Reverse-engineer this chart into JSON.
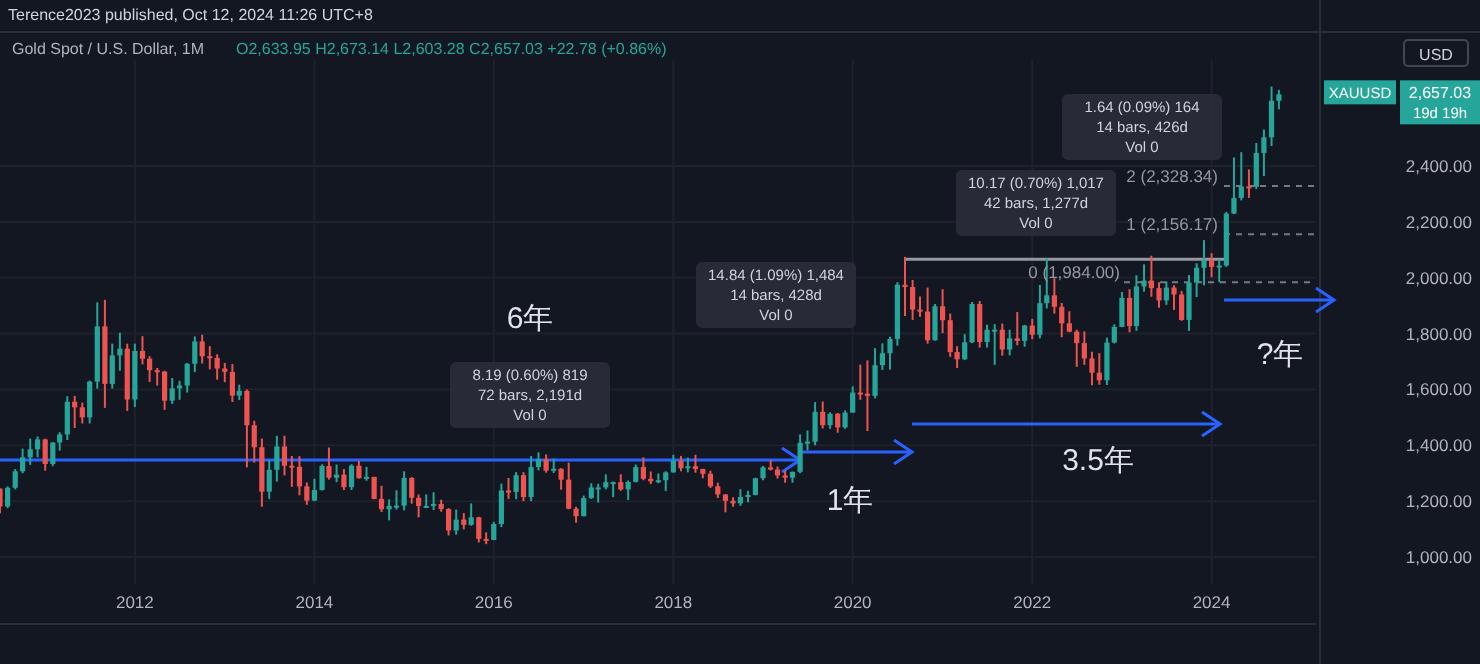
{
  "chart_data": {
    "type": "candlestick",
    "title": "Gold Spot / U.S. Dollar, 1M",
    "subtitle": "Terence2023 published, Oct 12, 2024 11:26 UTC+8",
    "x": [
      "2010-07",
      "2010-08",
      "2010-09",
      "2010-10",
      "2010-11",
      "2010-12",
      "2011-01",
      "2011-02",
      "2011-03",
      "2011-04",
      "2011-05",
      "2011-06",
      "2011-07",
      "2011-08",
      "2011-09",
      "2011-10",
      "2011-11",
      "2011-12",
      "2012-01",
      "2012-02",
      "2012-03",
      "2012-04",
      "2012-05",
      "2012-06",
      "2012-07",
      "2012-08",
      "2012-09",
      "2012-10",
      "2012-11",
      "2012-12",
      "2013-01",
      "2013-02",
      "2013-03",
      "2013-04",
      "2013-05",
      "2013-06",
      "2013-07",
      "2013-08",
      "2013-09",
      "2013-10",
      "2013-11",
      "2013-12",
      "2014-01",
      "2014-02",
      "2014-03",
      "2014-04",
      "2014-05",
      "2014-06",
      "2014-07",
      "2014-08",
      "2014-09",
      "2014-10",
      "2014-11",
      "2014-12",
      "2015-01",
      "2015-02",
      "2015-03",
      "2015-04",
      "2015-05",
      "2015-06",
      "2015-07",
      "2015-08",
      "2015-09",
      "2015-10",
      "2015-11",
      "2015-12",
      "2016-01",
      "2016-02",
      "2016-03",
      "2016-04",
      "2016-05",
      "2016-06",
      "2016-07",
      "2016-08",
      "2016-09",
      "2016-10",
      "2016-11",
      "2016-12",
      "2017-01",
      "2017-02",
      "2017-03",
      "2017-04",
      "2017-05",
      "2017-06",
      "2017-07",
      "2017-08",
      "2017-09",
      "2017-10",
      "2017-11",
      "2017-12",
      "2018-01",
      "2018-02",
      "2018-03",
      "2018-04",
      "2018-05",
      "2018-06",
      "2018-07",
      "2018-08",
      "2018-09",
      "2018-10",
      "2018-11",
      "2018-12",
      "2019-01",
      "2019-02",
      "2019-03",
      "2019-04",
      "2019-05",
      "2019-06",
      "2019-07",
      "2019-08",
      "2019-09",
      "2019-10",
      "2019-11",
      "2019-12",
      "2020-01",
      "2020-02",
      "2020-03",
      "2020-04",
      "2020-05",
      "2020-06",
      "2020-07",
      "2020-08",
      "2020-09",
      "2020-10",
      "2020-11",
      "2020-12",
      "2021-01",
      "2021-02",
      "2021-03",
      "2021-04",
      "2021-05",
      "2021-06",
      "2021-07",
      "2021-08",
      "2021-09",
      "2021-10",
      "2021-11",
      "2021-12",
      "2022-01",
      "2022-02",
      "2022-03",
      "2022-04",
      "2022-05",
      "2022-06",
      "2022-07",
      "2022-08",
      "2022-09",
      "2022-10",
      "2022-11",
      "2022-12",
      "2023-01",
      "2023-02",
      "2023-03",
      "2023-04",
      "2023-05",
      "2023-06",
      "2023-07",
      "2023-08",
      "2023-09",
      "2023-10",
      "2023-11",
      "2023-12",
      "2024-01",
      "2024-02",
      "2024-03",
      "2024-04",
      "2024-05",
      "2024-06",
      "2024-07",
      "2024-08",
      "2024-09",
      "2024-10"
    ],
    "ohlc": [
      [
        1245,
        1245,
        1157,
        1181
      ],
      [
        1181,
        1253,
        1175,
        1248
      ],
      [
        1248,
        1315,
        1242,
        1307
      ],
      [
        1307,
        1388,
        1300,
        1357
      ],
      [
        1357,
        1424,
        1330,
        1386
      ],
      [
        1386,
        1432,
        1357,
        1421
      ],
      [
        1421,
        1424,
        1309,
        1333
      ],
      [
        1333,
        1411,
        1325,
        1410
      ],
      [
        1410,
        1447,
        1381,
        1439
      ],
      [
        1439,
        1576,
        1419,
        1556
      ],
      [
        1556,
        1577,
        1462,
        1536
      ],
      [
        1536,
        1553,
        1478,
        1500
      ],
      [
        1500,
        1632,
        1478,
        1628
      ],
      [
        1628,
        1912,
        1603,
        1826
      ],
      [
        1826,
        1921,
        1534,
        1620
      ],
      [
        1620,
        1764,
        1603,
        1722
      ],
      [
        1722,
        1803,
        1667,
        1746
      ],
      [
        1746,
        1764,
        1523,
        1564
      ],
      [
        1564,
        1764,
        1537,
        1738
      ],
      [
        1738,
        1791,
        1690,
        1710
      ],
      [
        1710,
        1719,
        1627,
        1669
      ],
      [
        1669,
        1677,
        1614,
        1664
      ],
      [
        1664,
        1667,
        1527,
        1560
      ],
      [
        1560,
        1641,
        1548,
        1604
      ],
      [
        1604,
        1631,
        1563,
        1614
      ],
      [
        1614,
        1695,
        1589,
        1692
      ],
      [
        1692,
        1790,
        1662,
        1772
      ],
      [
        1772,
        1796,
        1693,
        1719
      ],
      [
        1719,
        1755,
        1672,
        1713
      ],
      [
        1713,
        1726,
        1635,
        1675
      ],
      [
        1675,
        1695,
        1626,
        1663
      ],
      [
        1663,
        1691,
        1555,
        1578
      ],
      [
        1578,
        1617,
        1562,
        1595
      ],
      [
        1595,
        1600,
        1321,
        1472
      ],
      [
        1472,
        1488,
        1338,
        1393
      ],
      [
        1393,
        1424,
        1180,
        1234
      ],
      [
        1234,
        1347,
        1208,
        1312
      ],
      [
        1312,
        1434,
        1270,
        1396
      ],
      [
        1396,
        1434,
        1292,
        1327
      ],
      [
        1327,
        1362,
        1251,
        1323
      ],
      [
        1323,
        1361,
        1221,
        1253
      ],
      [
        1253,
        1267,
        1187,
        1202
      ],
      [
        1202,
        1280,
        1200,
        1240
      ],
      [
        1240,
        1332,
        1238,
        1326
      ],
      [
        1326,
        1392,
        1277,
        1284
      ],
      [
        1284,
        1331,
        1268,
        1295
      ],
      [
        1295,
        1315,
        1240,
        1250
      ],
      [
        1250,
        1332,
        1240,
        1327
      ],
      [
        1327,
        1345,
        1281,
        1282
      ],
      [
        1282,
        1323,
        1273,
        1287
      ],
      [
        1287,
        1287,
        1207,
        1208
      ],
      [
        1208,
        1255,
        1161,
        1171
      ],
      [
        1171,
        1206,
        1131,
        1183
      ],
      [
        1183,
        1239,
        1170,
        1184
      ],
      [
        1184,
        1307,
        1167,
        1283
      ],
      [
        1283,
        1286,
        1191,
        1212
      ],
      [
        1212,
        1224,
        1142,
        1183
      ],
      [
        1183,
        1224,
        1175,
        1183
      ],
      [
        1183,
        1232,
        1168,
        1190
      ],
      [
        1190,
        1205,
        1162,
        1172
      ],
      [
        1172,
        1175,
        1077,
        1095
      ],
      [
        1095,
        1170,
        1080,
        1134
      ],
      [
        1134,
        1157,
        1099,
        1115
      ],
      [
        1115,
        1192,
        1112,
        1142
      ],
      [
        1142,
        1144,
        1052,
        1065
      ],
      [
        1065,
        1088,
        1046,
        1061
      ],
      [
        1061,
        1126,
        1061,
        1118
      ],
      [
        1118,
        1263,
        1107,
        1238
      ],
      [
        1238,
        1283,
        1208,
        1233
      ],
      [
        1233,
        1304,
        1207,
        1293
      ],
      [
        1293,
        1304,
        1200,
        1215
      ],
      [
        1215,
        1362,
        1200,
        1322
      ],
      [
        1322,
        1375,
        1310,
        1351
      ],
      [
        1351,
        1367,
        1302,
        1309
      ],
      [
        1309,
        1352,
        1301,
        1316
      ],
      [
        1316,
        1318,
        1241,
        1277
      ],
      [
        1277,
        1338,
        1171,
        1173
      ],
      [
        1173,
        1180,
        1123,
        1146
      ],
      [
        1146,
        1220,
        1146,
        1211
      ],
      [
        1211,
        1264,
        1208,
        1249
      ],
      [
        1249,
        1262,
        1195,
        1249
      ],
      [
        1249,
        1296,
        1242,
        1268
      ],
      [
        1268,
        1270,
        1214,
        1268
      ],
      [
        1268,
        1296,
        1237,
        1242
      ],
      [
        1242,
        1274,
        1204,
        1269
      ],
      [
        1269,
        1331,
        1267,
        1322
      ],
      [
        1322,
        1357,
        1275,
        1280
      ],
      [
        1280,
        1306,
        1261,
        1271
      ],
      [
        1271,
        1299,
        1264,
        1275
      ],
      [
        1275,
        1307,
        1236,
        1303
      ],
      [
        1303,
        1366,
        1302,
        1345
      ],
      [
        1345,
        1362,
        1307,
        1318
      ],
      [
        1318,
        1356,
        1303,
        1325
      ],
      [
        1325,
        1366,
        1302,
        1315
      ],
      [
        1315,
        1316,
        1282,
        1298
      ],
      [
        1298,
        1309,
        1247,
        1253
      ],
      [
        1253,
        1266,
        1211,
        1224
      ],
      [
        1224,
        1225,
        1160,
        1201
      ],
      [
        1201,
        1214,
        1180,
        1192
      ],
      [
        1192,
        1243,
        1183,
        1215
      ],
      [
        1215,
        1237,
        1196,
        1222
      ],
      [
        1222,
        1284,
        1221,
        1282
      ],
      [
        1282,
        1326,
        1275,
        1321
      ],
      [
        1321,
        1347,
        1310,
        1313
      ],
      [
        1313,
        1324,
        1281,
        1292
      ],
      [
        1292,
        1310,
        1266,
        1284
      ],
      [
        1284,
        1306,
        1266,
        1305
      ],
      [
        1305,
        1439,
        1300,
        1409
      ],
      [
        1409,
        1453,
        1382,
        1413
      ],
      [
        1413,
        1555,
        1400,
        1520
      ],
      [
        1520,
        1557,
        1460,
        1472
      ],
      [
        1472,
        1518,
        1459,
        1513
      ],
      [
        1513,
        1516,
        1445,
        1464
      ],
      [
        1464,
        1525,
        1459,
        1517
      ],
      [
        1517,
        1611,
        1517,
        1589
      ],
      [
        1589,
        1689,
        1563,
        1585
      ],
      [
        1585,
        1704,
        1451,
        1577
      ],
      [
        1577,
        1748,
        1568,
        1687
      ],
      [
        1687,
        1765,
        1670,
        1730
      ],
      [
        1730,
        1789,
        1671,
        1781
      ],
      [
        1781,
        1984,
        1757,
        1975
      ],
      [
        1975,
        2075,
        1863,
        1967
      ],
      [
        1967,
        1992,
        1849,
        1886
      ],
      [
        1886,
        1933,
        1860,
        1879
      ],
      [
        1879,
        1965,
        1764,
        1776
      ],
      [
        1776,
        1906,
        1775,
        1898
      ],
      [
        1898,
        1959,
        1802,
        1848
      ],
      [
        1848,
        1872,
        1717,
        1734
      ],
      [
        1734,
        1755,
        1677,
        1708
      ],
      [
        1708,
        1798,
        1706,
        1769
      ],
      [
        1769,
        1913,
        1766,
        1906
      ],
      [
        1906,
        1917,
        1750,
        1770
      ],
      [
        1770,
        1832,
        1750,
        1814
      ],
      [
        1814,
        1834,
        1688,
        1814
      ],
      [
        1814,
        1836,
        1721,
        1743
      ],
      [
        1743,
        1814,
        1722,
        1783
      ],
      [
        1783,
        1877,
        1758,
        1774
      ],
      [
        1774,
        1831,
        1753,
        1829
      ],
      [
        1829,
        1853,
        1780,
        1796
      ],
      [
        1796,
        1974,
        1783,
        1909
      ],
      [
        1909,
        2070,
        1890,
        1937
      ],
      [
        1937,
        1998,
        1872,
        1896
      ],
      [
        1896,
        1910,
        1787,
        1837
      ],
      [
        1837,
        1880,
        1805,
        1807
      ],
      [
        1807,
        1814,
        1681,
        1766
      ],
      [
        1766,
        1808,
        1688,
        1711
      ],
      [
        1711,
        1735,
        1615,
        1660
      ],
      [
        1660,
        1730,
        1617,
        1633
      ],
      [
        1633,
        1786,
        1616,
        1768
      ],
      [
        1768,
        1833,
        1765,
        1824
      ],
      [
        1824,
        1949,
        1823,
        1928
      ],
      [
        1928,
        1959,
        1805,
        1827
      ],
      [
        1827,
        2009,
        1810,
        1969
      ],
      [
        1969,
        2048,
        1950,
        1990
      ],
      [
        1990,
        2079,
        1932,
        1963
      ],
      [
        1963,
        1984,
        1893,
        1919
      ],
      [
        1919,
        1987,
        1903,
        1965
      ],
      [
        1965,
        1973,
        1885,
        1940
      ],
      [
        1940,
        1953,
        1846,
        1849
      ],
      [
        1849,
        2010,
        1810,
        1983
      ],
      [
        1983,
        2052,
        1931,
        2036
      ],
      [
        2036,
        2135,
        1973,
        2063
      ],
      [
        2063,
        2088,
        2002,
        2039
      ],
      [
        2039,
        2065,
        1984,
        2044
      ],
      [
        2044,
        2236,
        2039,
        2230
      ],
      [
        2230,
        2431,
        2228,
        2286
      ],
      [
        2286,
        2450,
        2277,
        2327
      ],
      [
        2327,
        2388,
        2286,
        2326
      ],
      [
        2326,
        2483,
        2318,
        2447
      ],
      [
        2447,
        2531,
        2364,
        2503
      ],
      [
        2503,
        2685,
        2472,
        2634
      ],
      [
        2633.95,
        2673.14,
        2603.28,
        2657.03
      ]
    ],
    "xlim": [
      "2010-07",
      "2025-03"
    ],
    "xticks": [
      "2012",
      "2014",
      "2016",
      "2018",
      "2020",
      "2022",
      "2024"
    ],
    "ylim": [
      760,
      2780
    ],
    "yticks": [
      {
        "value": 1000,
        "label": "1,000.00"
      },
      {
        "value": 1200,
        "label": "1,200.00"
      },
      {
        "value": 1400,
        "label": "1,400.00"
      },
      {
        "value": 1600,
        "label": "1,600.00"
      },
      {
        "value": 1800,
        "label": "1,800.00"
      },
      {
        "value": 2000,
        "label": "2,000.00"
      },
      {
        "value": 2200,
        "label": "2,200.00"
      },
      {
        "value": 2400,
        "label": "2,400.00"
      }
    ],
    "grid": true,
    "ref_lines": [
      {
        "axis": "y",
        "value": 1984.0,
        "label": "0 (1,984.00)",
        "color": "#787b86",
        "line_style": "dashed"
      },
      {
        "axis": "y",
        "value": 2156.17,
        "label": "1 (2,156.17)",
        "color": "#787b86",
        "line_style": "dashed"
      },
      {
        "axis": "y",
        "value": 2328.34,
        "label": "2 (2,328.34)",
        "color": "#787b86",
        "line_style": "dashed"
      },
      {
        "axis": "y",
        "value": 2066,
        "color": "#9598a1",
        "line_style": "solid"
      }
    ],
    "annotations": [
      "O2,633.95 H2,673.14 L2,603.28 C2,657.03 +22.78 (+0.86%)",
      "USD",
      "XAUUSD",
      "19d 19h",
      "2,657.03",
      "6年",
      "1年",
      "3.5年",
      "?年",
      "8.19 (0.60%) 819\n72 bars, 2,191d\nVol 0",
      "14.84 (1.09%) 1,484\n14 bars, 428d\nVol 0",
      "10.17 (0.70%) 1,017\n42 bars, 1,277d\nVol 0",
      "1.64 (0.09%) 164\n14 bars, 426d\nVol 0"
    ]
  }
}
